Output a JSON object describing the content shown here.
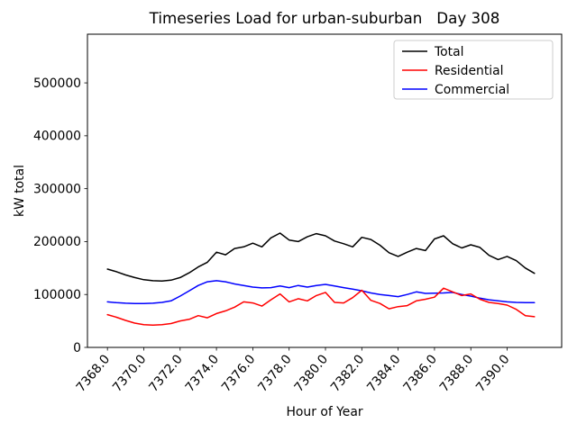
{
  "figure": {
    "background": "#ffffff"
  },
  "chart_data": {
    "type": "line",
    "title": "Timeseries Load for urban-suburban   Day 308",
    "xlabel": "Hour of Year",
    "ylabel": "kW total",
    "xlim": [
      7366.9,
      7393.0
    ],
    "ylim": [
      0,
      592000
    ],
    "grid": false,
    "x_ticks": {
      "values": [
        7368,
        7370,
        7372,
        7374,
        7376,
        7378,
        7380,
        7382,
        7384,
        7386,
        7388,
        7390
      ],
      "labels": [
        "7368.0",
        "7370.0",
        "7372.0",
        "7374.0",
        "7376.0",
        "7378.0",
        "7380.0",
        "7382.0",
        "7384.0",
        "7386.0",
        "7388.0",
        "7390.0"
      ],
      "rotation_deg": 50
    },
    "y_ticks": {
      "values": [
        0,
        100000,
        200000,
        300000,
        400000,
        500000
      ],
      "labels": [
        "0",
        "100000",
        "200000",
        "300000",
        "400000",
        "500000"
      ]
    },
    "legend": {
      "position": "upper right",
      "border_color": "#cccccc",
      "background": "#ffffff",
      "entries": [
        "Total",
        "Residential",
        "Commercial"
      ]
    },
    "x": [
      7368.0,
      7368.5,
      7369.0,
      7369.5,
      7370.0,
      7370.5,
      7371.0,
      7371.5,
      7372.0,
      7372.5,
      7373.0,
      7373.5,
      7374.0,
      7374.5,
      7375.0,
      7375.5,
      7376.0,
      7376.5,
      7377.0,
      7377.5,
      7378.0,
      7378.5,
      7379.0,
      7379.5,
      7380.0,
      7380.5,
      7381.0,
      7381.5,
      7382.0,
      7382.5,
      7383.0,
      7383.5,
      7384.0,
      7384.5,
      7385.0,
      7385.5,
      7386.0,
      7386.5,
      7387.0,
      7387.5,
      7388.0,
      7388.5,
      7389.0,
      7389.5,
      7390.0,
      7390.5,
      7391.0,
      7391.5
    ],
    "series": [
      {
        "name": "Total",
        "color": "#000000",
        "values": [
          148000,
          143000,
          137000,
          132000,
          128000,
          126000,
          125500,
          127000,
          132000,
          141000,
          152000,
          161000,
          180000,
          175000,
          187000,
          190000,
          197000,
          190000,
          207000,
          216000,
          203000,
          200000,
          209000,
          215000,
          211000,
          201000,
          196000,
          190000,
          208000,
          204000,
          193000,
          179000,
          172000,
          180000,
          187000,
          183000,
          205000,
          211000,
          196000,
          188000,
          194000,
          189000,
          174000,
          166000,
          172000,
          164000,
          150000,
          140000
        ]
      },
      {
        "name": "Residential",
        "color": "#ff0000",
        "values": [
          62000,
          57000,
          51000,
          46000,
          43000,
          42000,
          43000,
          45000,
          50000,
          53000,
          60000,
          56000,
          64000,
          69000,
          76000,
          86000,
          84000,
          78000,
          90000,
          101000,
          86000,
          92000,
          88000,
          98000,
          104000,
          85000,
          84000,
          94000,
          108000,
          89000,
          83000,
          73000,
          77000,
          79000,
          88000,
          91000,
          95000,
          112000,
          105000,
          98000,
          101000,
          91000,
          85000,
          83000,
          80000,
          72000,
          60000,
          58000
        ]
      },
      {
        "name": "Commercial",
        "color": "#0000ff",
        "values": [
          86000,
          84500,
          83500,
          83000,
          83000,
          83500,
          85000,
          88000,
          97000,
          107000,
          117000,
          124000,
          126000,
          124000,
          120000,
          117000,
          114000,
          112500,
          113000,
          116000,
          113000,
          117000,
          114000,
          117000,
          119000,
          116000,
          113000,
          110000,
          107000,
          103000,
          100000,
          98000,
          96000,
          100000,
          105000,
          102000,
          102500,
          103000,
          104000,
          100000,
          97000,
          93000,
          90000,
          88000,
          86000,
          85000,
          84500,
          84500
        ]
      }
    ]
  }
}
